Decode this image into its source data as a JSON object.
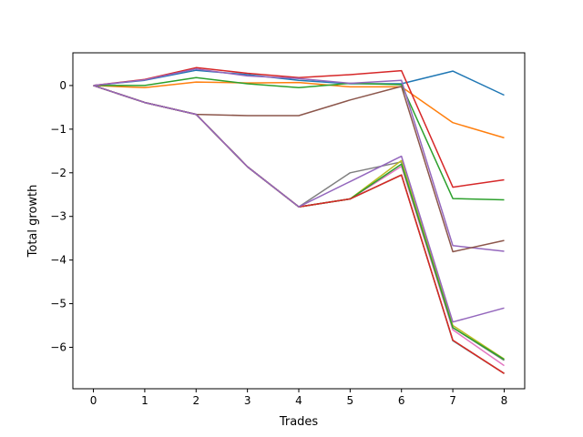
{
  "chart_data": {
    "type": "line",
    "title": "",
    "xlabel": "Trades",
    "ylabel": "Total growth",
    "xlim": [
      -0.4,
      8.4
    ],
    "ylim": [
      -6.95,
      0.75
    ],
    "grid": false,
    "legend": "none",
    "x": [
      0,
      1,
      2,
      3,
      4,
      5,
      6,
      7,
      8
    ],
    "x_ticks": [
      0,
      1,
      2,
      3,
      4,
      5,
      6,
      7,
      8
    ],
    "y_ticks": [
      0,
      -1,
      -2,
      -3,
      -4,
      -5,
      -6
    ],
    "x_tick_labels": [
      "0",
      "1",
      "2",
      "3",
      "4",
      "5",
      "6",
      "7",
      "8"
    ],
    "y_tick_labels": [
      "0",
      "−1",
      "−2",
      "−3",
      "−4",
      "−5",
      "−6"
    ],
    "series": [
      {
        "color": "#1f77b4",
        "values": [
          0,
          0.12,
          0.35,
          0.25,
          0.12,
          0.04,
          0.04,
          0.33,
          -0.22
        ]
      },
      {
        "color": "#ff7f0e",
        "values": [
          0,
          -0.05,
          0.08,
          0.06,
          0.07,
          -0.03,
          -0.03,
          -0.85,
          -1.2
        ]
      },
      {
        "color": "#2ca02c",
        "values": [
          0,
          0.0,
          0.18,
          0.04,
          -0.05,
          0.05,
          0.02,
          -2.59,
          -2.62
        ]
      },
      {
        "color": "#d62728",
        "values": [
          0,
          0.14,
          0.41,
          0.28,
          0.18,
          0.25,
          0.34,
          -2.33,
          -2.16
        ]
      },
      {
        "color": "#9467bd",
        "values": [
          0,
          0.13,
          0.38,
          0.22,
          0.16,
          0.05,
          0.12,
          -3.67,
          -3.8
        ]
      },
      {
        "color": "#8c564b",
        "values": [
          0,
          -0.39,
          -0.66,
          -0.69,
          -0.69,
          -0.33,
          -0.02,
          -3.81,
          -3.55
        ]
      },
      {
        "color": "#e377c2",
        "values": [
          0,
          -0.39,
          -0.66,
          -1.86,
          -2.78,
          -2.6,
          -1.85,
          -5.6,
          -6.42
        ]
      },
      {
        "color": "#7f7f7f",
        "values": [
          0,
          -0.39,
          -0.66,
          -1.86,
          -2.78,
          -2.0,
          -1.75,
          -5.55,
          -6.3
        ]
      },
      {
        "color": "#bcbd22",
        "values": [
          0,
          -0.39,
          -0.66,
          -1.86,
          -2.78,
          -2.6,
          -1.72,
          -5.5,
          -6.27
        ]
      },
      {
        "color": "#17becf",
        "values": [
          0,
          -0.39,
          -0.66,
          -1.86,
          -2.78,
          -2.6,
          -2.05,
          -5.85,
          -6.6
        ]
      },
      {
        "color": "#1f77b4",
        "values": [
          0,
          -0.39,
          -0.66,
          -1.86,
          -2.78,
          -2.6,
          -2.05,
          -5.84,
          -6.6
        ]
      },
      {
        "color": "#ff7f0e",
        "values": [
          0,
          -0.39,
          -0.66,
          -1.86,
          -2.78,
          -2.6,
          -2.05,
          -5.84,
          -6.6
        ]
      },
      {
        "color": "#2ca02c",
        "values": [
          0,
          -0.39,
          -0.66,
          -1.86,
          -2.78,
          -2.6,
          -1.8,
          -5.55,
          -6.28
        ]
      },
      {
        "color": "#d62728",
        "values": [
          0,
          -0.39,
          -0.66,
          -1.86,
          -2.78,
          -2.6,
          -2.05,
          -5.84,
          -6.6
        ]
      },
      {
        "color": "#9467bd",
        "values": [
          0,
          -0.39,
          -0.66,
          -1.86,
          -2.78,
          -2.2,
          -1.62,
          -5.42,
          -5.1
        ]
      }
    ]
  }
}
